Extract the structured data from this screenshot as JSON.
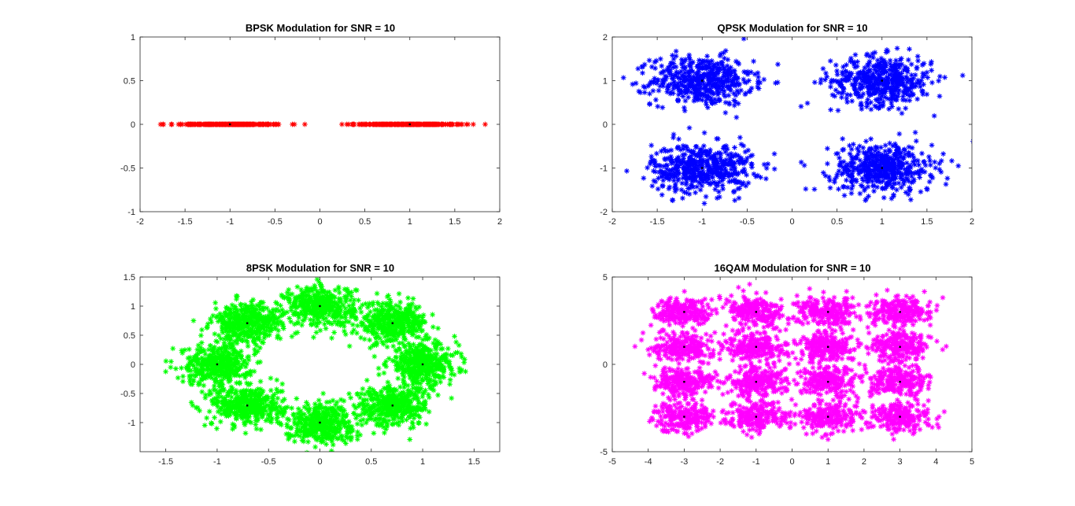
{
  "chart_data": [
    {
      "type": "scatter",
      "title": "BPSK Modulation for SNR = 10",
      "xlim": [
        -2,
        2
      ],
      "ylim": [
        -1,
        1
      ],
      "xticks": [
        -2,
        -1.5,
        -1,
        -0.5,
        0,
        0.5,
        1,
        1.5,
        2
      ],
      "yticks": [
        -1,
        -0.5,
        0,
        0.5,
        1
      ],
      "xtick_labels": [
        "-2",
        "-1.5",
        "-1",
        "-0.5",
        "0",
        "0.5",
        "1",
        "1.5",
        "2"
      ],
      "ytick_labels": [
        "-1",
        "-0.5",
        "0",
        "0.5",
        "1"
      ],
      "marker": "*",
      "color": "#ff0000",
      "constellation": [
        [
          -1,
          0
        ],
        [
          1,
          0
        ]
      ],
      "noise_spread": [
        0.3,
        0.0
      ],
      "points_per_symbol": 260,
      "grid": false
    },
    {
      "type": "scatter",
      "title": "QPSK Modulation for SNR = 10",
      "xlim": [
        -2,
        2
      ],
      "ylim": [
        -2,
        2
      ],
      "xticks": [
        -2,
        -1.5,
        -1,
        -0.5,
        0,
        0.5,
        1,
        1.5,
        2
      ],
      "yticks": [
        -2,
        -1,
        0,
        1,
        2
      ],
      "xtick_labels": [
        "-2",
        "-1.5",
        "-1",
        "-0.5",
        "0",
        "0.5",
        "1",
        "1.5",
        "2"
      ],
      "ytick_labels": [
        "-2",
        "-1",
        "0",
        "1",
        "2"
      ],
      "marker": "*",
      "color": "#0000ff",
      "constellation": [
        [
          -1,
          1
        ],
        [
          1,
          1
        ],
        [
          -1,
          -1
        ],
        [
          1,
          -1
        ]
      ],
      "noise_spread": [
        0.28,
        0.28
      ],
      "points_per_symbol": 500,
      "grid": false
    },
    {
      "type": "scatter",
      "title": "8PSK Modulation for SNR = 10",
      "xlim": [
        -1.75,
        1.75
      ],
      "ylim": [
        -1.5,
        1.5
      ],
      "xticks": [
        -1.5,
        -1,
        -0.5,
        0,
        0.5,
        1,
        1.5
      ],
      "yticks": [
        -1,
        -0.5,
        0,
        0.5,
        1,
        1.5
      ],
      "xtick_labels": [
        "-1.5",
        "-1",
        "-0.5",
        "0",
        "0.5",
        "1",
        "1.5"
      ],
      "ytick_labels": [
        "-1",
        "-0.5",
        "0",
        "0.5",
        "1",
        "1.5"
      ],
      "marker": "*",
      "color": "#00ff00",
      "constellation": [
        [
          1,
          0
        ],
        [
          0.707,
          0.707
        ],
        [
          0,
          1
        ],
        [
          -0.707,
          0.707
        ],
        [
          -1,
          0
        ],
        [
          -0.707,
          -0.707
        ],
        [
          0,
          -1
        ],
        [
          0.707,
          -0.707
        ]
      ],
      "noise_spread": [
        0.17,
        0.17
      ],
      "points_per_symbol": 420,
      "grid": false
    },
    {
      "type": "scatter",
      "title": "16QAM Modulation for SNR = 10",
      "xlim": [
        -5,
        5
      ],
      "ylim": [
        -5,
        5
      ],
      "xticks": [
        -5,
        -4,
        -3,
        -2,
        -1,
        0,
        1,
        2,
        3,
        4,
        5
      ],
      "yticks": [
        -5,
        0,
        5
      ],
      "xtick_labels": [
        "-5",
        "-4",
        "-3",
        "-2",
        "-1",
        "0",
        "1",
        "2",
        "3",
        "4",
        "5"
      ],
      "ytick_labels": [
        "-5",
        "0",
        "5"
      ],
      "marker": "*",
      "color": "#ff00ff",
      "constellation": [
        [
          -3,
          3
        ],
        [
          -1,
          3
        ],
        [
          1,
          3
        ],
        [
          3,
          3
        ],
        [
          -3,
          1
        ],
        [
          -1,
          1
        ],
        [
          1,
          1
        ],
        [
          3,
          1
        ],
        [
          -3,
          -1
        ],
        [
          -1,
          -1
        ],
        [
          1,
          -1
        ],
        [
          3,
          -1
        ],
        [
          -3,
          -3
        ],
        [
          -1,
          -3
        ],
        [
          1,
          -3
        ],
        [
          3,
          -3
        ]
      ],
      "noise_spread": [
        0.42,
        0.42
      ],
      "points_per_symbol": 230,
      "grid": false
    }
  ]
}
